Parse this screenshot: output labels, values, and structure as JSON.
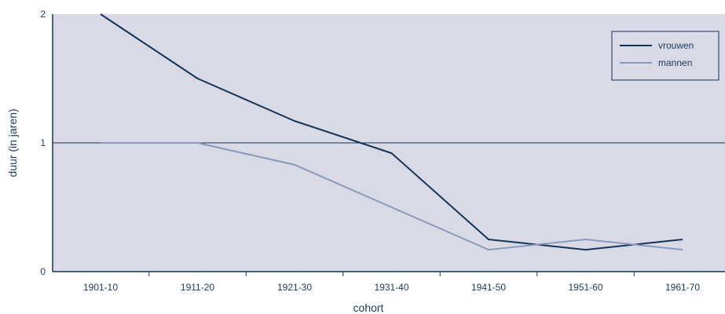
{
  "chart_data": {
    "type": "line",
    "title": "",
    "xlabel": "cohort",
    "ylabel": "duur (in jaren)",
    "categories": [
      "1901-10",
      "1911-20",
      "1921-30",
      "1931-40",
      "1941-50",
      "1951-60",
      "1961-70"
    ],
    "series": [
      {
        "name": "vrouwen",
        "values": [
          2.0,
          1.5,
          1.17,
          0.92,
          0.25,
          0.17,
          0.25
        ],
        "color": "#12345a"
      },
      {
        "name": "mannen",
        "values": [
          1.0,
          1.0,
          0.83,
          0.5,
          0.17,
          0.25,
          0.17
        ],
        "color": "#8a9ab8"
      }
    ],
    "ylim": [
      0,
      2
    ],
    "yticks": [
      0,
      1,
      2
    ],
    "reference_line": 1,
    "grid": false,
    "legend_position": "top-right",
    "plot_background": "#d9dae6",
    "axis_color": "#12345a"
  }
}
